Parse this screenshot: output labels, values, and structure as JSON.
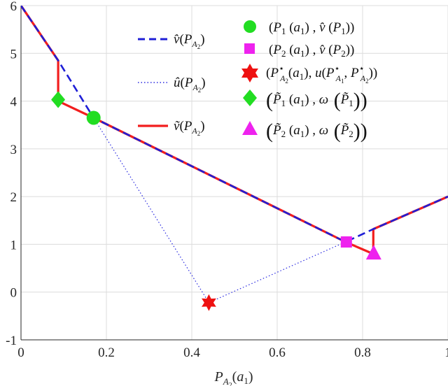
{
  "chart_data": {
    "type": "line",
    "xlabel": "P_{A_2}(a_1)",
    "xlim": [
      0,
      1
    ],
    "ylim": [
      -1,
      6
    ],
    "grid": true,
    "xticks": [
      "0",
      "0.2",
      "0.4",
      "0.6",
      "0.8",
      "1"
    ],
    "yticks": [
      "-1",
      "0",
      "1",
      "2",
      "3",
      "4",
      "5",
      "6"
    ],
    "line_legend": {
      "placement": "top-center",
      "entries": [
        {
          "label": "v̂(P_{A_2})",
          "style": "dashed",
          "color": "#1f1fd6"
        },
        {
          "label": "û(P_{A_2})",
          "style": "dotted",
          "color": "#2a2ae0"
        },
        {
          "label": "ṽ(P_{A_2})",
          "style": "solid",
          "color": "#f21e1e"
        }
      ]
    },
    "marker_legend": {
      "placement": "top-right",
      "entries": [
        {
          "label": "(P_1(a_1), v̂(P_1))",
          "marker": "circle",
          "color": "#22dd22"
        },
        {
          "label": "(P_2(a_1), v̂(P_2))",
          "marker": "square",
          "color": "#ee22ee"
        },
        {
          "label": "(P*_{A_2}(a_1), u(P*_{A_1}, P*_{A_2}))",
          "marker": "hexagram",
          "color": "#ee1111"
        },
        {
          "label": "(P̃_1(a_1), ω(P̃_1))",
          "marker": "diamond",
          "color": "#22dd22"
        },
        {
          "label": "(P̃_2(a_1), ω(P̃_2))",
          "marker": "triangle",
          "color": "#ee22ee"
        }
      ]
    },
    "series": [
      {
        "style": "solid",
        "color": "#f21e1e",
        "width": 3.2,
        "x": [
          0,
          0.087,
          0.087,
          0.17,
          0.76,
          0.825,
          0.825,
          1
        ],
        "y": [
          6,
          4.85,
          4.0,
          3.65,
          1.05,
          0.8,
          1.32,
          2.0
        ]
      },
      {
        "style": "dashed",
        "color": "#1f1fd6",
        "width": 2.6,
        "x": [
          0,
          0.087,
          0.17,
          0.76,
          0.825,
          1
        ],
        "y": [
          6,
          4.85,
          3.65,
          1.05,
          1.32,
          2.0
        ]
      },
      {
        "style": "dotted",
        "color": "#2a2ae0",
        "width": 1.2,
        "x": [
          0.17,
          0.44,
          0.76
        ],
        "y": [
          3.65,
          -0.22,
          1.05
        ]
      }
    ],
    "points": [
      {
        "marker": "circle",
        "color": "#22dd22",
        "x": 0.17,
        "y": 3.65
      },
      {
        "marker": "square",
        "color": "#ee22ee",
        "x": 0.762,
        "y": 1.05
      },
      {
        "marker": "hexagram",
        "color": "#ee1111",
        "x": 0.44,
        "y": -0.22
      },
      {
        "marker": "diamond",
        "color": "#22dd22",
        "x": 0.087,
        "y": 4.03
      },
      {
        "marker": "triangle",
        "color": "#ee22ee",
        "x": 0.826,
        "y": 0.8
      }
    ]
  }
}
